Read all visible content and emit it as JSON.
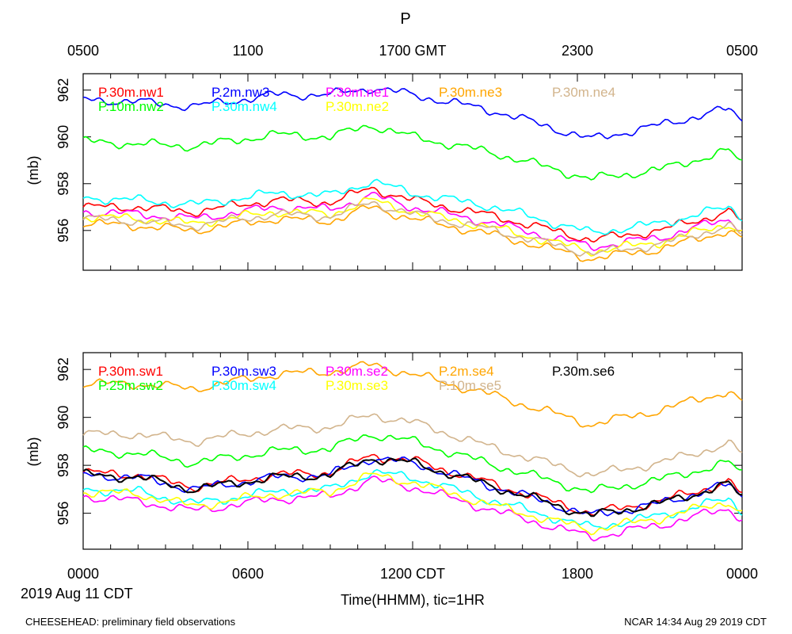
{
  "title": "P",
  "gmt_ticks": [
    "0500",
    "1100",
    "1700 GMT",
    "2300",
    "0500"
  ],
  "cdt_ticks": [
    "0000",
    "0600",
    "1200 CDT",
    "1800",
    "0000"
  ],
  "date_label": "2019 Aug 11 CDT",
  "xlabel": "Time(HHMM), tic=1HR",
  "footer_left": "CHEESEHEAD: preliminary field observations",
  "footer_right": "NCAR 14:34 Aug 29 2019 CDT",
  "chart_data": [
    {
      "type": "line",
      "panel": "top",
      "title": "P",
      "ylabel": "(mb)",
      "xlabel_top": "GMT",
      "x_hours": [
        0,
        24
      ],
      "ylim": [
        954.3,
        962.7
      ],
      "yticks": [
        "956",
        "958",
        "960",
        "962"
      ],
      "series": [
        {
          "name": "P.30m.nw1",
          "color": "#ff0000",
          "anchors": [
            [
              0,
              957.0
            ],
            [
              2,
              957.0
            ],
            [
              4,
              956.8
            ],
            [
              7,
              957.3
            ],
            [
              9,
              957.2
            ],
            [
              10.5,
              957.8
            ],
            [
              12,
              957.3
            ],
            [
              15,
              956.6
            ],
            [
              18.5,
              955.6
            ],
            [
              21,
              956.0
            ],
            [
              23.5,
              956.8
            ],
            [
              24,
              956.4
            ]
          ]
        },
        {
          "name": "P.10m.nw2",
          "color": "#00ff00",
          "anchors": [
            [
              0,
              959.8
            ],
            [
              2,
              959.7
            ],
            [
              4,
              959.6
            ],
            [
              7,
              960.1
            ],
            [
              9,
              960.0
            ],
            [
              10.5,
              960.5
            ],
            [
              12,
              960.0
            ],
            [
              15,
              959.3
            ],
            [
              18.5,
              958.2
            ],
            [
              21,
              958.6
            ],
            [
              23.5,
              959.4
            ],
            [
              24,
              958.9
            ]
          ]
        },
        {
          "name": "P.2m.nw3",
          "color": "#0000ff",
          "anchors": [
            [
              0,
              961.6
            ],
            [
              2,
              961.5
            ],
            [
              4,
              961.3
            ],
            [
              7,
              961.8
            ],
            [
              9,
              961.8
            ],
            [
              10.5,
              962.1
            ],
            [
              12,
              961.8
            ],
            [
              15,
              961.1
            ],
            [
              18.5,
              959.9
            ],
            [
              21,
              960.5
            ],
            [
              23.5,
              961.2
            ],
            [
              24,
              960.7
            ]
          ]
        },
        {
          "name": "P.30m.nw4",
          "color": "#00ffff",
          "anchors": [
            [
              0,
              957.4
            ],
            [
              2,
              957.3
            ],
            [
              4,
              957.1
            ],
            [
              7,
              957.6
            ],
            [
              9,
              957.5
            ],
            [
              10.5,
              958.1
            ],
            [
              12,
              957.6
            ],
            [
              15,
              957.0
            ],
            [
              18.5,
              955.9
            ],
            [
              21,
              956.3
            ],
            [
              23.5,
              957.0
            ],
            [
              24,
              956.6
            ]
          ]
        },
        {
          "name": "P.30m.ne1",
          "color": "#ff00ff",
          "anchors": [
            [
              0,
              956.8
            ],
            [
              2,
              956.7
            ],
            [
              4,
              956.5
            ],
            [
              7,
              957.0
            ],
            [
              9,
              956.9
            ],
            [
              10.5,
              957.5
            ],
            [
              12,
              957.0
            ],
            [
              15,
              956.3
            ],
            [
              18.5,
              955.3
            ],
            [
              21,
              955.7
            ],
            [
              23.5,
              956.5
            ],
            [
              24,
              956.1
            ]
          ]
        },
        {
          "name": "P.30m.ne2",
          "color": "#ffff00",
          "anchors": [
            [
              0,
              956.6
            ],
            [
              2,
              956.5
            ],
            [
              4,
              956.3
            ],
            [
              7,
              956.8
            ],
            [
              9,
              956.7
            ],
            [
              10.5,
              957.3
            ],
            [
              12,
              956.8
            ],
            [
              15,
              956.1
            ],
            [
              18.5,
              955.1
            ],
            [
              21,
              955.5
            ],
            [
              23.5,
              956.3
            ],
            [
              24,
              955.9
            ]
          ]
        },
        {
          "name": "P.30m.ne3",
          "color": "#ffa500",
          "anchors": [
            [
              0,
              956.3
            ],
            [
              2,
              956.2
            ],
            [
              4,
              956.0
            ],
            [
              7,
              956.5
            ],
            [
              9,
              956.4
            ],
            [
              10.5,
              957.0
            ],
            [
              12,
              956.5
            ],
            [
              15,
              955.8
            ],
            [
              18.5,
              954.8
            ],
            [
              21,
              955.2
            ],
            [
              23.5,
              956.0
            ],
            [
              24,
              955.6
            ]
          ]
        },
        {
          "name": "P.30m.ne4",
          "color": "#d2b48c",
          "anchors": [
            [
              0,
              956.5
            ],
            [
              2,
              956.4
            ],
            [
              4,
              956.2
            ],
            [
              7,
              956.7
            ],
            [
              9,
              956.6
            ],
            [
              10.5,
              957.2
            ],
            [
              12,
              956.7
            ],
            [
              15,
              956.0
            ],
            [
              18.5,
              955.0
            ],
            [
              21,
              955.4
            ],
            [
              23.5,
              956.2
            ],
            [
              24,
              955.8
            ]
          ]
        }
      ]
    },
    {
      "type": "line",
      "panel": "bottom",
      "ylabel": "(mb)",
      "xlabel": "Time(HHMM), tic=1HR",
      "x_hours": [
        0,
        24
      ],
      "ylim": [
        954.5,
        962.7
      ],
      "yticks": [
        "956",
        "958",
        "960",
        "962"
      ],
      "series": [
        {
          "name": "P.30m.sw1",
          "color": "#ff0000",
          "anchors": [
            [
              0,
              957.7
            ],
            [
              2,
              957.6
            ],
            [
              4,
              957.1
            ],
            [
              7,
              957.6
            ],
            [
              9,
              957.7
            ],
            [
              10.5,
              958.4
            ],
            [
              12,
              958.2
            ],
            [
              15,
              957.2
            ],
            [
              18.5,
              956.0
            ],
            [
              21,
              956.5
            ],
            [
              23.5,
              957.3
            ],
            [
              24,
              956.8
            ]
          ]
        },
        {
          "name": "P.25m.sw2",
          "color": "#00ff00",
          "anchors": [
            [
              0,
              958.6
            ],
            [
              2,
              958.5
            ],
            [
              4,
              958.1
            ],
            [
              7,
              958.6
            ],
            [
              9,
              958.7
            ],
            [
              10.5,
              959.3
            ],
            [
              12,
              959.0
            ],
            [
              15,
              958.0
            ],
            [
              18.5,
              956.9
            ],
            [
              21,
              957.4
            ],
            [
              23.5,
              958.1
            ],
            [
              24,
              957.7
            ]
          ]
        },
        {
          "name": "P.30m.sw3",
          "color": "#0000ff",
          "anchors": [
            [
              0,
              957.6
            ],
            [
              2,
              957.5
            ],
            [
              4,
              957.0
            ],
            [
              7,
              957.5
            ],
            [
              9,
              957.6
            ],
            [
              10.5,
              958.3
            ],
            [
              12,
              958.1
            ],
            [
              15,
              957.1
            ],
            [
              18.5,
              955.9
            ],
            [
              21,
              956.4
            ],
            [
              23.5,
              957.2
            ],
            [
              24,
              956.7
            ]
          ]
        },
        {
          "name": "P.30m.sw4",
          "color": "#00ffff",
          "anchors": [
            [
              0,
              957.0
            ],
            [
              2,
              956.9
            ],
            [
              4,
              956.4
            ],
            [
              7,
              956.9
            ],
            [
              9,
              957.0
            ],
            [
              10.5,
              957.7
            ],
            [
              12,
              957.5
            ],
            [
              15,
              956.5
            ],
            [
              18.5,
              955.4
            ],
            [
              21,
              955.9
            ],
            [
              23.5,
              956.6
            ],
            [
              24,
              956.1
            ]
          ]
        },
        {
          "name": "P.30m.se2",
          "color": "#ff00ff",
          "anchors": [
            [
              0,
              956.7
            ],
            [
              2,
              956.5
            ],
            [
              4,
              956.1
            ],
            [
              7,
              956.6
            ],
            [
              9,
              956.7
            ],
            [
              10.5,
              957.4
            ],
            [
              12,
              957.1
            ],
            [
              15,
              956.1
            ],
            [
              18.5,
              955.0
            ],
            [
              21,
              955.5
            ],
            [
              23.5,
              956.2
            ],
            [
              24,
              955.8
            ]
          ]
        },
        {
          "name": "P.30m.se3",
          "color": "#ffff00",
          "anchors": [
            [
              0,
              956.9
            ],
            [
              2,
              956.8
            ],
            [
              4,
              956.3
            ],
            [
              7,
              956.8
            ],
            [
              9,
              956.9
            ],
            [
              10.5,
              957.6
            ],
            [
              12,
              957.3
            ],
            [
              15,
              956.3
            ],
            [
              18.5,
              955.3
            ],
            [
              21,
              955.8
            ],
            [
              23.5,
              956.5
            ],
            [
              24,
              956.0
            ]
          ]
        },
        {
          "name": "P.2m.se4",
          "color": "#ffa500",
          "anchors": [
            [
              0,
              961.4
            ],
            [
              2,
              961.4
            ],
            [
              4,
              961.2
            ],
            [
              7,
              961.8
            ],
            [
              9,
              961.9
            ],
            [
              10.5,
              962.2
            ],
            [
              12,
              961.8
            ],
            [
              15,
              960.9
            ],
            [
              18.5,
              959.7
            ],
            [
              21,
              960.3
            ],
            [
              23.5,
              961.1
            ],
            [
              24,
              960.6
            ]
          ]
        },
        {
          "name": "P.10m.se5",
          "color": "#d2b48c",
          "anchors": [
            [
              0,
              959.3
            ],
            [
              2,
              959.3
            ],
            [
              4,
              959.0
            ],
            [
              7,
              959.5
            ],
            [
              9,
              959.6
            ],
            [
              10.5,
              960.1
            ],
            [
              12,
              959.8
            ],
            [
              15,
              958.7
            ],
            [
              18.5,
              957.6
            ],
            [
              21,
              958.1
            ],
            [
              23.5,
              958.9
            ],
            [
              24,
              958.5
            ]
          ]
        },
        {
          "name": "P.30m.se6",
          "color": "#000000",
          "anchors": [
            [
              0,
              957.6
            ],
            [
              2,
              957.5
            ],
            [
              4,
              957.0
            ],
            [
              7,
              957.5
            ],
            [
              9,
              957.6
            ],
            [
              10.5,
              958.3
            ],
            [
              12,
              958.1
            ],
            [
              15,
              957.1
            ],
            [
              18.5,
              955.9
            ],
            [
              21,
              956.4
            ],
            [
              23.5,
              957.2
            ],
            [
              24,
              956.7
            ]
          ]
        }
      ]
    }
  ]
}
